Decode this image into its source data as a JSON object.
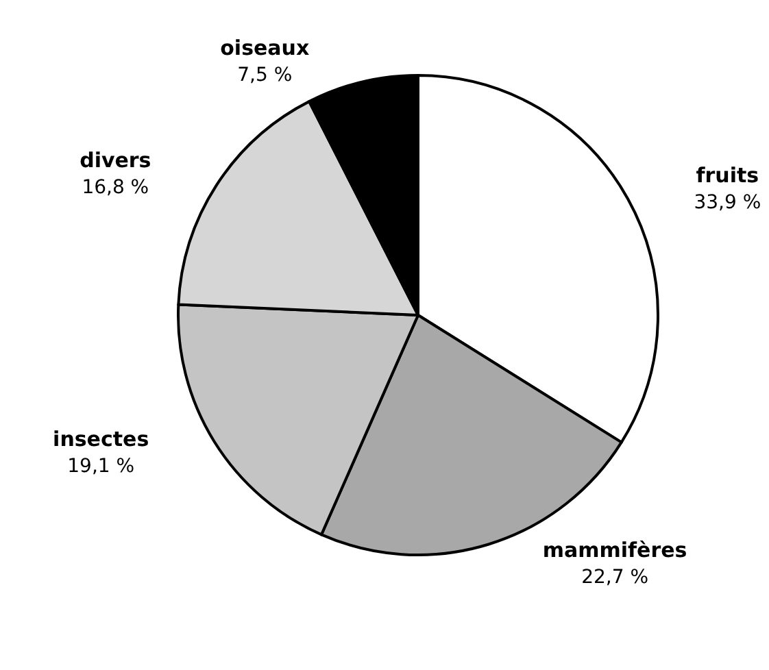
{
  "chart_data": {
    "type": "pie",
    "categories": [
      "fruits",
      "mammifères",
      "insectes",
      "divers",
      "oiseaux"
    ],
    "values": [
      33.9,
      22.7,
      19.1,
      16.8,
      7.5
    ],
    "value_labels": [
      "33,9 %",
      "22,7 %",
      "19,1 %",
      "16,8 %",
      "7,5 %"
    ],
    "colors": [
      "#ffffff",
      "#a8a8a8",
      "#c4c4c4",
      "#d6d6d6",
      "#000000"
    ],
    "legend": false
  }
}
